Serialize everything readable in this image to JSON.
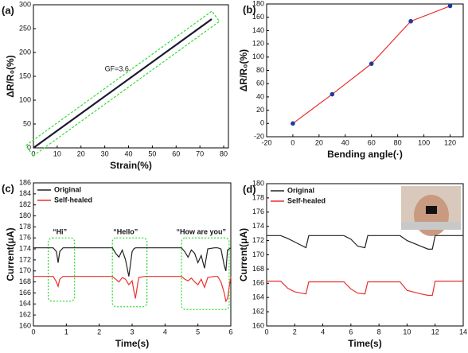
{
  "chart_data": [
    {
      "type": "line",
      "panel_label": "(a)",
      "x_label": "Strain(%)",
      "y_label": "ΔR/R₀(%)",
      "annotations": [
        "GF=3.6"
      ],
      "x": [
        0,
        75
      ],
      "series": [
        {
          "color": "#1a1a2e",
          "values": [
            0,
            270
          ]
        }
      ],
      "xlim": [
        0,
        82
      ],
      "xticks": [
        0,
        10,
        20,
        30,
        40,
        50,
        60,
        70,
        80
      ],
      "ylim": [
        0,
        300
      ],
      "yticks": [
        0,
        50,
        100,
        150,
        200,
        250,
        300
      ],
      "grid": false
    },
    {
      "type": "line",
      "panel_label": "(b)",
      "x_label": "Bending angle(·)",
      "y_label": "ΔR/R₀(%)",
      "x": [
        0,
        30,
        60,
        90,
        120
      ],
      "series": [
        {
          "color": "#e8312f",
          "marker_color": "#1f3a9e",
          "values": [
            0,
            44,
            90,
            154,
            177
          ]
        }
      ],
      "xlim": [
        -20,
        130
      ],
      "xticks": [
        -20,
        0,
        20,
        40,
        60,
        80,
        100,
        120
      ],
      "ylim": [
        -20,
        180
      ],
      "yticks": [
        -20,
        0,
        20,
        40,
        60,
        80,
        100,
        120,
        140,
        160,
        180
      ],
      "grid": false
    },
    {
      "type": "line",
      "panel_label": "(c)",
      "x_label": "Time(s)",
      "y_label": "Current(μA)",
      "annotations": [
        "“Hi”",
        "“Hello”",
        "“How are you”"
      ],
      "x": [
        0,
        0.6,
        0.7,
        0.75,
        0.8,
        0.9,
        1.2,
        2.4,
        2.5,
        2.6,
        2.7,
        2.8,
        2.9,
        3.0,
        3.05,
        3.1,
        3.2,
        3.4,
        4.5,
        4.6,
        4.7,
        4.8,
        4.9,
        5.0,
        5.1,
        5.2,
        5.3,
        5.5,
        5.6,
        5.7,
        5.75,
        5.8,
        5.85,
        5.9,
        6.0
      ],
      "series": [
        {
          "name": "Original",
          "color": "#222222",
          "values": [
            174.2,
            174.2,
            173.5,
            171.5,
            173.5,
            174.2,
            174.2,
            174.2,
            173.2,
            172.5,
            173.8,
            172,
            169,
            173.5,
            174,
            174.2,
            174.2,
            174.2,
            174.2,
            173.5,
            172.5,
            173.8,
            173.2,
            171.5,
            172.8,
            170.5,
            174,
            174.2,
            174.2,
            174,
            172.5,
            171,
            170,
            173.8,
            174.2
          ]
        },
        {
          "name": "Self-healed",
          "color": "#e8312f",
          "values": [
            169,
            169,
            168,
            167.2,
            168.5,
            169,
            169,
            169,
            168.5,
            168,
            168.8,
            168.5,
            167.5,
            168.2,
            166.5,
            165,
            168.8,
            169,
            169,
            168.5,
            168.2,
            168.7,
            168,
            167.5,
            168.5,
            167,
            168.8,
            169,
            169,
            168,
            167,
            166,
            164.5,
            165,
            169
          ]
        }
      ],
      "xlim": [
        0,
        6
      ],
      "xticks": [
        0,
        1,
        2,
        3,
        4,
        5,
        6
      ],
      "ylim": [
        160,
        186
      ],
      "yticks": [
        160,
        162,
        164,
        166,
        168,
        170,
        172,
        174,
        176,
        178,
        180,
        182,
        184,
        186
      ],
      "grid": false
    },
    {
      "type": "line",
      "panel_label": "(d)",
      "x_label": "Time(s)",
      "y_label": "Current(μA)",
      "x": [
        0,
        1,
        1.5,
        2,
        2.5,
        2.8,
        3,
        5.5,
        6,
        6.5,
        7,
        7.2,
        9.5,
        10,
        11,
        11.5,
        11.8,
        12,
        14
      ],
      "series": [
        {
          "name": "Original",
          "color": "#222222",
          "values": [
            172.7,
            172.7,
            172.3,
            171.8,
            171.3,
            171,
            172.7,
            172.7,
            172.2,
            171.2,
            171,
            172.7,
            172.7,
            172,
            171.2,
            170.8,
            170.8,
            172.7,
            172.7
          ]
        },
        {
          "name": "Self-healed",
          "color": "#e8312f",
          "values": [
            166.3,
            166.3,
            165.3,
            164.8,
            164.6,
            164.5,
            166.2,
            166.2,
            165.2,
            164.6,
            164.5,
            166.2,
            166.2,
            165,
            164.5,
            164.3,
            164.3,
            166.3,
            166.3
          ]
        }
      ],
      "xlim": [
        0,
        14
      ],
      "xticks": [
        0,
        2,
        4,
        6,
        8,
        10,
        12,
        14
      ],
      "ylim": [
        160,
        180
      ],
      "yticks": [
        160,
        162,
        164,
        166,
        168,
        170,
        172,
        174,
        176,
        178,
        180
      ],
      "grid": false
    }
  ]
}
